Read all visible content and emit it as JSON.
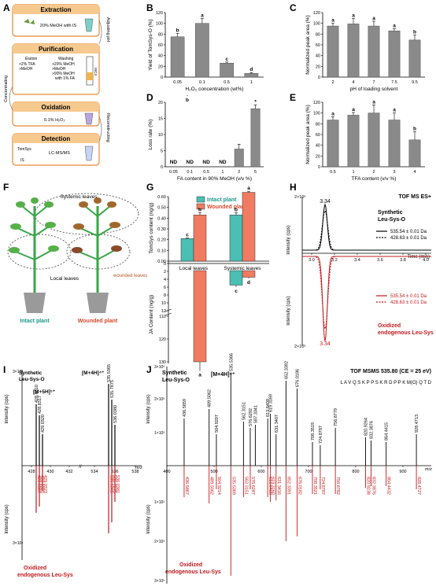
{
  "panels": {
    "A": {
      "label": "A",
      "steps": [
        {
          "title": "Extraction",
          "body": [
            "20% MeOH with IS"
          ]
        },
        {
          "title": "Purification",
          "body": [
            "Elution",
            ">2% TFA",
            ">MeOH",
            "Washing",
            ">20% MeOH",
            ">MeOH",
            ">90% MeOH",
            "with 1% FA",
            "WCX"
          ]
        },
        {
          "title": "Oxidation",
          "body": [
            "0.1% H₂O₂"
          ]
        },
        {
          "title": "Detection",
          "body": [
            "TomSys",
            "IS",
            "LC-MS/MS"
          ]
        }
      ],
      "side_labels": [
        "Adjusting pH",
        "Concentrating",
        "Reconstructing"
      ]
    },
    "B": {
      "label": "B"
    },
    "C": {
      "label": "C"
    },
    "D": {
      "label": "D"
    },
    "E": {
      "label": "E"
    },
    "F": {
      "label": "F",
      "labels": [
        "Systemic leaves",
        "Local leaves",
        "wounded leaves",
        "Intact plant",
        "Wounded plant"
      ],
      "colors": {
        "intact": "#1a9a8a",
        "wounded": "#d9482b"
      }
    },
    "G": {
      "label": "G"
    },
    "H": {
      "label": "H",
      "header": "TOF MS ES+",
      "top_title": [
        "Synthetic",
        "Leu-Sys-O"
      ],
      "bottom_title": [
        "Oxidized",
        "endogenous Leu-Sys"
      ],
      "legend": [
        "535.54 ± 0.01 Da",
        "428.63 ± 0.01 Da"
      ],
      "peak": "3.34",
      "xlabel": "Time (min)",
      "ylabel": "Intensity (cps)",
      "ticks_x": [
        "3.0",
        "3.2",
        "3.4",
        "3.6",
        "3.8",
        "4.0"
      ],
      "top_ymax": "2×10⁵",
      "bot_ymax": "2×10⁵"
    },
    "I": {
      "label": "I",
      "top_title": [
        "Synthetic",
        "Leu-Sys-O"
      ],
      "bottom_title": [
        "Oxidized",
        "endogenous Leu-Sys"
      ],
      "ions": [
        "[M+5H]⁵⁺",
        "[M+4H]⁴⁺"
      ],
      "peaks_top": [
        "428.6310",
        "428.8317",
        "429.0320",
        "535.5365",
        "535.7875",
        "536.0380"
      ],
      "peaks_bot": [
        "428.6307",
        "428.8320",
        "429.0323",
        "535.5365",
        "535.7875",
        "536.0381"
      ],
      "ticks_x": [
        "428",
        "430",
        "432",
        "534",
        "536",
        "538"
      ],
      "ylabel": "Intensity (cps)",
      "top_ymax": "3×10⁴",
      "bot_ymax": "3×10⁴",
      "xlabel": "m/z"
    },
    "J": {
      "label": "J",
      "header": "TOF MSMS 535.80 (CE = 25 eV)",
      "top_title": [
        "Synthetic",
        "Leu-Sys-O"
      ],
      "bottom_title": [
        "Oxidized",
        "endogenous Leu-Sys"
      ],
      "ion": "[M+4H]⁴⁺",
      "sequence": "L A V Q S K P P S K R D P P K M(O) Q T D",
      "ticks_x": [
        "400",
        "500",
        "600",
        "700",
        "800",
        "900"
      ],
      "ylabel": "Intensity (cps)",
      "top_ymax": "3×10³",
      "bot_ymax": "3×10³",
      "top_mid": "2×10³",
      "bot_mid": "2×10³",
      "top_low": "1×10³",
      "bot_low": "1×10³",
      "xlabel": "m/z"
    }
  },
  "chart_data": [
    {
      "panel": "B",
      "type": "bar",
      "xlabel": "H₂O₂ concentration (wt%)",
      "ylabel": "Yield of TomSys-O (%)",
      "categories": [
        "0.05",
        "0.1",
        "0.5",
        "1"
      ],
      "values": [
        75,
        100,
        26,
        7
      ],
      "errors": [
        6,
        9,
        2,
        1.5
      ],
      "letters": [
        "b",
        "a",
        "c",
        "d"
      ],
      "ylim": [
        0,
        120
      ],
      "yticks": [
        "0",
        "20",
        "40",
        "60",
        "80",
        "100",
        "120"
      ]
    },
    {
      "panel": "C",
      "type": "bar",
      "xlabel": "pH of loading solvent",
      "ylabel": "Normalized peak area (%)",
      "categories": [
        "2",
        "4",
        "7",
        "7.5",
        "9.5"
      ],
      "values": [
        95,
        99,
        95,
        86,
        69
      ],
      "errors": [
        5,
        10,
        9,
        4,
        9
      ],
      "letters": [
        "a",
        "a",
        "a",
        "a",
        "b"
      ],
      "ylim": [
        0,
        120
      ],
      "yticks": [
        "0",
        "20",
        "40",
        "60",
        "80",
        "100",
        "120"
      ]
    },
    {
      "panel": "D",
      "type": "bar",
      "xlabel": "FA content in 90% MeOH (v/v %)",
      "ylabel": "Loss rate (%)",
      "categories": [
        "0.05",
        "0.1",
        "0.5",
        "1",
        "2",
        "5"
      ],
      "values": [
        0,
        0,
        0,
        0,
        5.5,
        18
      ],
      "errors": [
        0,
        0,
        0,
        0,
        1.5,
        1.2
      ],
      "nd": [
        "ND",
        "ND",
        "ND",
        "ND",
        "",
        ""
      ],
      "letters": [
        "",
        "",
        "",
        "",
        "",
        "*"
      ],
      "ylim": [
        0,
        20
      ],
      "yticks": [
        "0",
        "5",
        "10",
        "15",
        "20"
      ]
    },
    {
      "panel": "E",
      "type": "bar",
      "xlabel": "TFA content (v/v %)",
      "ylabel": "Normalized peak area (%)",
      "categories": [
        "0.5",
        "1",
        "2",
        "3",
        "4"
      ],
      "values": [
        87,
        96,
        100,
        87,
        50
      ],
      "errors": [
        6,
        5,
        15,
        13,
        15
      ],
      "letters": [
        "a",
        "a",
        "a",
        "a",
        "b"
      ],
      "ylim": [
        0,
        120
      ],
      "yticks": [
        "0",
        "20",
        "40",
        "60",
        "80",
        "100",
        "120"
      ]
    },
    {
      "panel": "G",
      "type": "bar",
      "categories": [
        "Local leaves",
        "Systemic leaves"
      ],
      "series": [
        {
          "name": "Intact plant",
          "tomsys": [
            0.21,
            0.43
          ],
          "tomsys_err": [
            0.005,
            0.02
          ],
          "ja": [
            13,
            5.5
          ],
          "ja_err": [
            0.5,
            0.5
          ],
          "letters_top": [
            "c",
            "b"
          ],
          "letters_bot": [
            "b",
            "c"
          ]
        },
        {
          "name": "Wounded plant",
          "tomsys": [
            0.43,
            0.64
          ],
          "tomsys_err": [
            0.02,
            0.01
          ],
          "ja": [
            130,
            3.5
          ],
          "ja_err": [
            4,
            0.3
          ],
          "letters_top": [
            "b",
            "a"
          ],
          "letters_bot": [
            "a",
            "d"
          ]
        }
      ],
      "ylabel_top": "TomSys content (ng/g)",
      "ylabel_bottom": "JA Content (ng/g)",
      "yticks_top": [
        "0.00",
        "0.10",
        "0.20",
        "0.30",
        "0.40",
        "0.50",
        "0.60"
      ],
      "yticks_bottom": [
        "0",
        "2",
        "4",
        "6",
        "8",
        "10",
        "12",
        "110",
        "120",
        "130"
      ]
    },
    {
      "panel": "J",
      "type": "bar",
      "peaks_top": [
        "436.5859",
        "489.5062",
        "504.9207",
        "535.5366",
        "562.3151",
        "576.6292",
        "587.3341",
        "613.6409",
        "619.3169",
        "631.3407",
        "652.3392",
        "676.0186",
        "708.3519",
        "724.8787",
        "756.8779",
        "820.9264",
        "832.3876",
        "864.4415",
        "928.4713"
      ],
      "peaks_bot": [
        "436.5867",
        "489.5062",
        "504.9214",
        "535.5369",
        "562.3151",
        "576.6287",
        "613.6409",
        "619.3160",
        "631.3416",
        "652.3391",
        "676.0182",
        "708.3521",
        "724.8787",
        "756.8782",
        "820.9238",
        "832.3876",
        "864.4432",
        "928.4727"
      ]
    }
  ]
}
